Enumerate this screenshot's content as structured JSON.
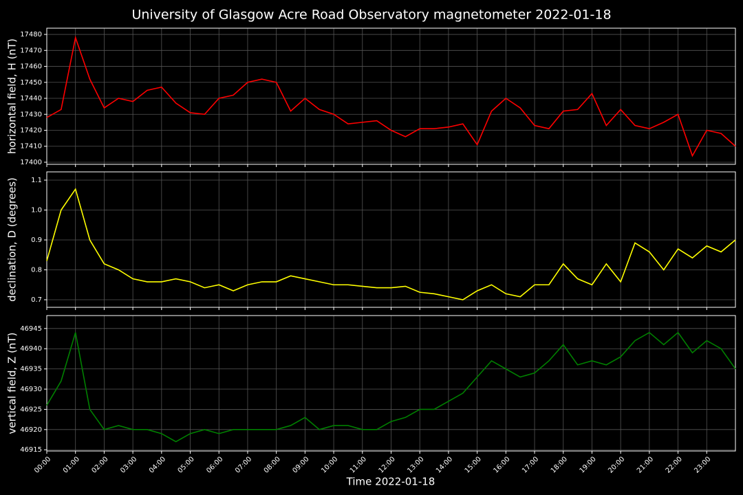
{
  "chart_data": [
    {
      "type": "line",
      "title": "University of Glasgow Acre Road Observatory magnetometer 2022-01-18",
      "ylabel": "horizontal field, H (nT)",
      "color": "#ff0000",
      "grid": true,
      "xlim": [
        0,
        24
      ],
      "ylim": [
        17398.7,
        17483.9
      ],
      "yticks": [
        17400,
        17410,
        17420,
        17430,
        17440,
        17450,
        17460,
        17470,
        17480
      ],
      "x": [
        0,
        0.5,
        1,
        1.5,
        2,
        2.5,
        3,
        3.5,
        4,
        4.5,
        5,
        5.5,
        6,
        6.5,
        7,
        7.5,
        8,
        8.5,
        9,
        9.5,
        10,
        10.5,
        11,
        11.5,
        12,
        12.5,
        13,
        13.5,
        14,
        14.5,
        15,
        15.5,
        16,
        16.5,
        17,
        17.5,
        18,
        18.5,
        19,
        19.5,
        20,
        20.5,
        21,
        21.5,
        22,
        22.5,
        23,
        23.5,
        24
      ],
      "values": [
        17428,
        17433,
        17478,
        17452,
        17434,
        17440,
        17438,
        17445,
        17447,
        17437,
        17431,
        17430,
        17440,
        17442,
        17450,
        17452,
        17450,
        17432,
        17440,
        17433,
        17430,
        17424,
        17425,
        17426,
        17420,
        17416,
        17421,
        17421,
        17422,
        17424,
        17411,
        17432,
        17440,
        17434,
        17423,
        17421,
        17432,
        17433,
        17443,
        17423,
        17433,
        17423,
        17421,
        17425,
        17430,
        17404,
        17420,
        17418,
        17410
      ]
    },
    {
      "type": "line",
      "ylabel": "declination, D (degrees)",
      "color": "#ffff00",
      "grid": true,
      "xlim": [
        0,
        24
      ],
      "ylim": [
        0.6747,
        1.1276
      ],
      "yticks": [
        0.7,
        0.8,
        0.9,
        {
          "value": 1,
          "label": "1.0"
        },
        1.1
      ],
      "x": [
        0,
        0.5,
        1,
        1.5,
        2,
        2.5,
        3,
        3.5,
        4,
        4.5,
        5,
        5.5,
        6,
        6.5,
        7,
        7.5,
        8,
        8.5,
        9,
        9.5,
        10,
        10.5,
        11,
        11.5,
        12,
        12.5,
        13,
        13.5,
        14,
        14.5,
        15,
        15.5,
        16,
        16.5,
        17,
        17.5,
        18,
        18.5,
        19,
        19.5,
        20,
        20.5,
        21,
        21.5,
        22,
        22.5,
        23,
        23.5,
        24
      ],
      "values": [
        0.83,
        1.0,
        1.07,
        0.9,
        0.82,
        0.8,
        0.77,
        0.76,
        0.76,
        0.77,
        0.76,
        0.74,
        0.75,
        0.73,
        0.75,
        0.76,
        0.76,
        0.78,
        0.77,
        0.76,
        0.75,
        0.75,
        0.745,
        0.74,
        0.74,
        0.745,
        0.725,
        0.72,
        0.71,
        0.7,
        0.73,
        0.75,
        0.72,
        0.71,
        0.75,
        0.75,
        0.82,
        0.77,
        0.75,
        0.82,
        0.76,
        0.89,
        0.86,
        0.8,
        0.87,
        0.84,
        0.88,
        0.86,
        0.9
      ]
    },
    {
      "type": "line",
      "ylabel": "vertical field, Z (nT)",
      "xlabel": "Time 2022-01-18",
      "color": "#008000",
      "grid": true,
      "xlim": [
        0,
        24
      ],
      "ylim": [
        46914.7,
        46948.2
      ],
      "yticks": [
        46915,
        46920,
        46925,
        46930,
        46935,
        46940,
        46945
      ],
      "xticks": [
        {
          "value": 0,
          "label": "00:00"
        },
        {
          "value": 1,
          "label": "01:00"
        },
        {
          "value": 2,
          "label": "02:00"
        },
        {
          "value": 3,
          "label": "03:00"
        },
        {
          "value": 4,
          "label": "04:00"
        },
        {
          "value": 5,
          "label": "05:00"
        },
        {
          "value": 6,
          "label": "06:00"
        },
        {
          "value": 7,
          "label": "07:00"
        },
        {
          "value": 8,
          "label": "08:00"
        },
        {
          "value": 9,
          "label": "09:00"
        },
        {
          "value": 10,
          "label": "10:00"
        },
        {
          "value": 11,
          "label": "11:00"
        },
        {
          "value": 12,
          "label": "12:00"
        },
        {
          "value": 13,
          "label": "13:00"
        },
        {
          "value": 14,
          "label": "14:00"
        },
        {
          "value": 15,
          "label": "15:00"
        },
        {
          "value": 16,
          "label": "16:00"
        },
        {
          "value": 17,
          "label": "17:00"
        },
        {
          "value": 18,
          "label": "18:00"
        },
        {
          "value": 19,
          "label": "19:00"
        },
        {
          "value": 20,
          "label": "20:00"
        },
        {
          "value": 21,
          "label": "21:00"
        },
        {
          "value": 22,
          "label": "22:00"
        },
        {
          "value": 23,
          "label": "23:00"
        }
      ],
      "x": [
        0,
        0.5,
        1,
        1.5,
        2,
        2.5,
        3,
        3.5,
        4,
        4.5,
        5,
        5.5,
        6,
        6.5,
        7,
        7.5,
        8,
        8.5,
        9,
        9.5,
        10,
        10.5,
        11,
        11.5,
        12,
        12.5,
        13,
        13.5,
        14,
        14.5,
        15,
        15.5,
        16,
        16.5,
        17,
        17.5,
        18,
        18.5,
        19,
        19.5,
        20,
        20.5,
        21,
        21.5,
        22,
        22.5,
        23,
        23.5,
        24
      ],
      "values": [
        46926,
        46932,
        46944,
        46925,
        46920,
        46921,
        46920,
        46920,
        46919,
        46917,
        46919,
        46920,
        46919,
        46920,
        46920,
        46920,
        46920,
        46921,
        46923,
        46920,
        46921,
        46921,
        46920,
        46920,
        46922,
        46923,
        46925,
        46925,
        46927,
        46929,
        46933,
        46937,
        46935,
        46933,
        46934,
        46937,
        46941,
        46936,
        46937,
        46936,
        46938,
        46942,
        46944,
        46941,
        46944,
        46939,
        46942,
        46940,
        46935
      ]
    }
  ]
}
